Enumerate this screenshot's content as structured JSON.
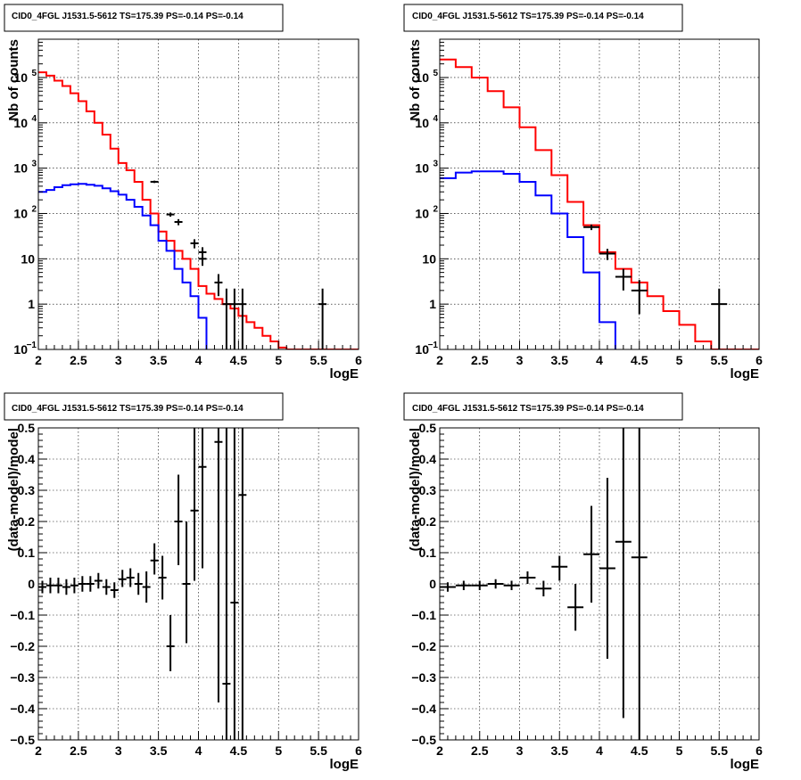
{
  "chart_data": [
    {
      "type": "line",
      "title": "CID0_4FGL J1531.5-5612 TS=175.39 PS=-0.14 PS=-0.14",
      "xlabel": "logE",
      "ylabel": "Nb of counts",
      "xlim": [
        2,
        6
      ],
      "ylim": [
        0.1,
        700000
      ],
      "yscale": "log",
      "grid": true,
      "xticks": [
        "2",
        "2.5",
        "3",
        "3.5",
        "4",
        "4.5",
        "5",
        "5.5",
        "6"
      ],
      "yticks": [
        {
          "v": 0.1,
          "base": "10",
          "exp": "−1"
        },
        {
          "v": 1,
          "base": "1",
          "exp": ""
        },
        {
          "v": 10,
          "base": "10",
          "exp": ""
        },
        {
          "v": 100,
          "base": "10",
          "exp": "2"
        },
        {
          "v": 1000,
          "base": "10",
          "exp": "3"
        },
        {
          "v": 10000,
          "base": "10",
          "exp": "4"
        },
        {
          "v": 100000,
          "base": "10",
          "exp": "5"
        }
      ],
      "bin_edges": [
        2.0,
        2.1,
        2.2,
        2.3,
        2.4,
        2.5,
        2.6,
        2.7,
        2.8,
        2.9,
        3.0,
        3.1,
        3.2,
        3.3,
        3.4,
        3.5,
        3.6,
        3.7,
        3.8,
        3.9,
        4.0,
        4.1,
        4.2,
        4.3,
        4.4,
        4.5,
        4.6,
        4.7,
        4.8,
        4.9,
        5.0,
        5.1,
        5.2,
        5.3,
        5.4,
        5.5,
        5.6,
        5.7,
        5.8,
        5.9,
        6.0
      ],
      "series": [
        {
          "color": "#ff0000",
          "values": [
            130000,
            110000,
            85000,
            65000,
            45000,
            30000,
            18000,
            10000,
            5500,
            2700,
            1300,
            900,
            500,
            200,
            100,
            40,
            25,
            15,
            10,
            6,
            2.5,
            1.7,
            1.3,
            1.0,
            0.8,
            0.55,
            0.4,
            0.3,
            0.2,
            0.15,
            0.11,
            0.1,
            0.1,
            0.1,
            0.1,
            0.1,
            0.1,
            0.1,
            0.1,
            0.1
          ]
        },
        {
          "color": "#0000ff",
          "values": [
            300,
            330,
            380,
            420,
            440,
            450,
            430,
            410,
            360,
            310,
            260,
            200,
            140,
            90,
            55,
            25,
            15,
            6,
            3,
            1.5,
            0.5,
            0.05,
            0.05,
            0.05,
            0.05,
            0.05,
            0.05,
            0.05,
            0.05,
            0.05,
            0.05,
            0.05,
            0.05,
            0.05,
            0.05,
            0.05,
            0.05,
            0.05,
            0.05,
            0.05
          ]
        }
      ],
      "points": [
        {
          "x": 3.45,
          "y": 500,
          "ylo": 470,
          "yhi": 530,
          "xhw": 0.05
        },
        {
          "x": 3.65,
          "y": 95,
          "ylo": 85,
          "yhi": 105,
          "xhw": 0.05
        },
        {
          "x": 3.75,
          "y": 65,
          "ylo": 55,
          "yhi": 75,
          "xhw": 0.05
        },
        {
          "x": 3.95,
          "y": 22,
          "ylo": 17,
          "yhi": 27,
          "xhw": 0.05
        },
        {
          "x": 4.05,
          "y": 14,
          "ylo": 10,
          "yhi": 18,
          "xhw": 0.05
        },
        {
          "x": 4.05,
          "y": 10,
          "ylo": 7,
          "yhi": 13,
          "xhw": 0.05
        },
        {
          "x": 4.25,
          "y": 3,
          "ylo": 1.5,
          "yhi": 4.6,
          "xhw": 0.05
        },
        {
          "x": 4.35,
          "y": 1,
          "ylo": 0.1,
          "yhi": 2.2,
          "xhw": 0.05
        },
        {
          "x": 4.45,
          "y": 1,
          "ylo": 0.1,
          "yhi": 2.2,
          "xhw": 0.05
        },
        {
          "x": 4.55,
          "y": 1,
          "ylo": 0.1,
          "yhi": 2.2,
          "xhw": 0.05
        },
        {
          "x": 5.55,
          "y": 1,
          "ylo": 0.1,
          "yhi": 2.2,
          "xhw": 0.05
        }
      ]
    },
    {
      "type": "line",
      "title": "CID0_4FGL J1531.5-5612 TS=175.39 PS=-0.14 PS=-0.14",
      "xlabel": "logE",
      "ylabel": "Nb of counts",
      "xlim": [
        2,
        6
      ],
      "ylim": [
        0.1,
        700000
      ],
      "yscale": "log",
      "grid": true,
      "xticks": [
        "2",
        "2.5",
        "3",
        "3.5",
        "4",
        "4.5",
        "5",
        "5.5",
        "6"
      ],
      "yticks": [
        {
          "v": 0.1,
          "base": "10",
          "exp": "−1"
        },
        {
          "v": 1,
          "base": "1",
          "exp": ""
        },
        {
          "v": 10,
          "base": "10",
          "exp": ""
        },
        {
          "v": 100,
          "base": "10",
          "exp": "2"
        },
        {
          "v": 1000,
          "base": "10",
          "exp": "3"
        },
        {
          "v": 10000,
          "base": "10",
          "exp": "4"
        },
        {
          "v": 100000,
          "base": "10",
          "exp": "5"
        }
      ],
      "bin_edges": [
        2.0,
        2.2,
        2.4,
        2.6,
        2.8,
        3.0,
        3.2,
        3.4,
        3.6,
        3.8,
        4.0,
        4.2,
        4.4,
        4.6,
        4.8,
        5.0,
        5.2,
        5.4,
        5.6,
        5.8,
        6.0
      ],
      "series": [
        {
          "color": "#ff0000",
          "values": [
            250000,
            170000,
            100000,
            50000,
            22000,
            8000,
            2500,
            700,
            180,
            55,
            14,
            6,
            3,
            1.5,
            0.7,
            0.35,
            0.15,
            0.1,
            0.1,
            0.1
          ]
        },
        {
          "color": "#0000ff",
          "values": [
            600,
            800,
            850,
            850,
            750,
            500,
            250,
            100,
            30,
            5,
            0.4,
            0.05,
            0.05,
            0.05,
            0.05,
            0.05,
            0.05,
            0.05,
            0.05,
            0.05
          ]
        }
      ],
      "points": [
        {
          "x": 3.9,
          "y": 50,
          "ylo": 43,
          "yhi": 57,
          "xhw": 0.1
        },
        {
          "x": 4.1,
          "y": 13,
          "ylo": 9.4,
          "yhi": 16.6,
          "xhw": 0.1
        },
        {
          "x": 4.3,
          "y": 4,
          "ylo": 2,
          "yhi": 6,
          "xhw": 0.1
        },
        {
          "x": 4.5,
          "y": 2,
          "ylo": 0.6,
          "yhi": 3.4,
          "xhw": 0.1
        },
        {
          "x": 5.5,
          "y": 1,
          "ylo": 0.1,
          "yhi": 2.2,
          "xhw": 0.1
        }
      ]
    },
    {
      "type": "scatter",
      "title": "CID0_4FGL J1531.5-5612 TS=175.39 PS=-0.14 PS=-0.14",
      "xlabel": "logE",
      "ylabel": "(data-model)/model",
      "xlim": [
        2,
        6
      ],
      "ylim": [
        -0.5,
        0.5
      ],
      "grid": true,
      "xticks": [
        "2",
        "2.5",
        "3",
        "3.5",
        "4",
        "4.5",
        "5",
        "5.5",
        "6"
      ],
      "yticks": [
        {
          "v": -0.5,
          "label": "−0.5"
        },
        {
          "v": -0.4,
          "label": "−0.4"
        },
        {
          "v": -0.3,
          "label": "−0.3"
        },
        {
          "v": -0.2,
          "label": "−0.2"
        },
        {
          "v": -0.1,
          "label": "−0.1"
        },
        {
          "v": 0,
          "label": "0"
        },
        {
          "v": 0.1,
          "label": "0.1"
        },
        {
          "v": 0.2,
          "label": "0.2"
        },
        {
          "v": 0.3,
          "label": "0.3"
        },
        {
          "v": 0.4,
          "label": "0.4"
        },
        {
          "v": 0.5,
          "label": "0.5"
        }
      ],
      "points": [
        {
          "x": 2.05,
          "y": -0.01,
          "ylo": -0.03,
          "yhi": 0.01,
          "xhw": 0.05
        },
        {
          "x": 2.15,
          "y": -0.005,
          "ylo": -0.03,
          "yhi": 0.02,
          "xhw": 0.05
        },
        {
          "x": 2.25,
          "y": -0.005,
          "ylo": -0.03,
          "yhi": 0.02,
          "xhw": 0.05
        },
        {
          "x": 2.35,
          "y": -0.01,
          "ylo": -0.035,
          "yhi": 0.015,
          "xhw": 0.05
        },
        {
          "x": 2.45,
          "y": -0.005,
          "ylo": -0.03,
          "yhi": 0.02,
          "xhw": 0.05
        },
        {
          "x": 2.55,
          "y": 0.0,
          "ylo": -0.025,
          "yhi": 0.025,
          "xhw": 0.05
        },
        {
          "x": 2.65,
          "y": 0.0,
          "ylo": -0.025,
          "yhi": 0.025,
          "xhw": 0.05
        },
        {
          "x": 2.75,
          "y": 0.01,
          "ylo": -0.015,
          "yhi": 0.035,
          "xhw": 0.05
        },
        {
          "x": 2.85,
          "y": -0.01,
          "ylo": -0.035,
          "yhi": 0.015,
          "xhw": 0.05
        },
        {
          "x": 2.95,
          "y": -0.02,
          "ylo": -0.045,
          "yhi": 0.005,
          "xhw": 0.05
        },
        {
          "x": 3.05,
          "y": 0.015,
          "ylo": -0.01,
          "yhi": 0.045,
          "xhw": 0.05
        },
        {
          "x": 3.15,
          "y": 0.02,
          "ylo": -0.01,
          "yhi": 0.05,
          "xhw": 0.05
        },
        {
          "x": 3.25,
          "y": 0.0,
          "ylo": -0.035,
          "yhi": 0.035,
          "xhw": 0.05
        },
        {
          "x": 3.35,
          "y": -0.01,
          "ylo": -0.06,
          "yhi": 0.04,
          "xhw": 0.05
        },
        {
          "x": 3.45,
          "y": 0.075,
          "ylo": 0.03,
          "yhi": 0.13,
          "xhw": 0.05
        },
        {
          "x": 3.55,
          "y": 0.02,
          "ylo": -0.05,
          "yhi": 0.09,
          "xhw": 0.05
        },
        {
          "x": 3.65,
          "y": -0.2,
          "ylo": -0.28,
          "yhi": -0.1,
          "xhw": 0.05
        },
        {
          "x": 3.75,
          "y": 0.2,
          "ylo": 0.06,
          "yhi": 0.35,
          "xhw": 0.05
        },
        {
          "x": 3.85,
          "y": 0.0,
          "ylo": -0.19,
          "yhi": 0.2,
          "xhw": 0.05
        },
        {
          "x": 3.95,
          "y": 0.235,
          "ylo": 0.01,
          "yhi": 0.5,
          "xhw": 0.05
        },
        {
          "x": 4.05,
          "y": 0.375,
          "ylo": 0.05,
          "yhi": 0.5,
          "xhw": 0.05
        },
        {
          "x": 4.25,
          "y": 0.455,
          "ylo": -0.38,
          "yhi": 0.5,
          "xhw": 0.05
        },
        {
          "x": 4.35,
          "y": -0.32,
          "ylo": -0.5,
          "yhi": 0.5,
          "xhw": 0.05
        },
        {
          "x": 4.45,
          "y": -0.06,
          "ylo": -0.5,
          "yhi": 0.5,
          "xhw": 0.05
        },
        {
          "x": 4.55,
          "y": 0.285,
          "ylo": -0.5,
          "yhi": 0.5,
          "xhw": 0.05
        }
      ]
    },
    {
      "type": "scatter",
      "title": "CID0_4FGL J1531.5-5612 TS=175.39 PS=-0.14 PS=-0.14",
      "xlabel": "logE",
      "ylabel": "(data-model)/model",
      "xlim": [
        2,
        6
      ],
      "ylim": [
        -0.5,
        0.5
      ],
      "grid": true,
      "xticks": [
        "2",
        "2.5",
        "3",
        "3.5",
        "4",
        "4.5",
        "5",
        "5.5",
        "6"
      ],
      "yticks": [
        {
          "v": -0.5,
          "label": "−0.5"
        },
        {
          "v": -0.4,
          "label": "−0.4"
        },
        {
          "v": -0.3,
          "label": "−0.3"
        },
        {
          "v": -0.2,
          "label": "−0.2"
        },
        {
          "v": -0.1,
          "label": "−0.1"
        },
        {
          "v": 0,
          "label": "0"
        },
        {
          "v": 0.1,
          "label": "0.1"
        },
        {
          "v": 0.2,
          "label": "0.2"
        },
        {
          "v": 0.3,
          "label": "0.3"
        },
        {
          "v": 0.4,
          "label": "0.4"
        },
        {
          "v": 0.5,
          "label": "0.5"
        }
      ],
      "points": [
        {
          "x": 2.1,
          "y": -0.01,
          "ylo": -0.025,
          "yhi": 0.005,
          "xhw": 0.1
        },
        {
          "x": 2.3,
          "y": -0.005,
          "ylo": -0.02,
          "yhi": 0.01,
          "xhw": 0.1
        },
        {
          "x": 2.5,
          "y": -0.005,
          "ylo": -0.02,
          "yhi": 0.01,
          "xhw": 0.1
        },
        {
          "x": 2.7,
          "y": 0.0,
          "ylo": -0.015,
          "yhi": 0.015,
          "xhw": 0.1
        },
        {
          "x": 2.9,
          "y": -0.005,
          "ylo": -0.02,
          "yhi": 0.01,
          "xhw": 0.1
        },
        {
          "x": 3.1,
          "y": 0.02,
          "ylo": 0.0,
          "yhi": 0.04,
          "xhw": 0.1
        },
        {
          "x": 3.3,
          "y": -0.015,
          "ylo": -0.04,
          "yhi": 0.01,
          "xhw": 0.1
        },
        {
          "x": 3.5,
          "y": 0.055,
          "ylo": 0.01,
          "yhi": 0.09,
          "xhw": 0.1
        },
        {
          "x": 3.7,
          "y": -0.075,
          "ylo": -0.15,
          "yhi": 0.0,
          "xhw": 0.1
        },
        {
          "x": 3.9,
          "y": 0.095,
          "ylo": -0.06,
          "yhi": 0.25,
          "xhw": 0.1
        },
        {
          "x": 4.1,
          "y": 0.05,
          "ylo": -0.24,
          "yhi": 0.34,
          "xhw": 0.1
        },
        {
          "x": 4.3,
          "y": 0.135,
          "ylo": -0.43,
          "yhi": 0.5,
          "xhw": 0.1
        },
        {
          "x": 4.5,
          "y": 0.085,
          "ylo": -0.5,
          "yhi": 0.5,
          "xhw": 0.1
        }
      ]
    }
  ]
}
